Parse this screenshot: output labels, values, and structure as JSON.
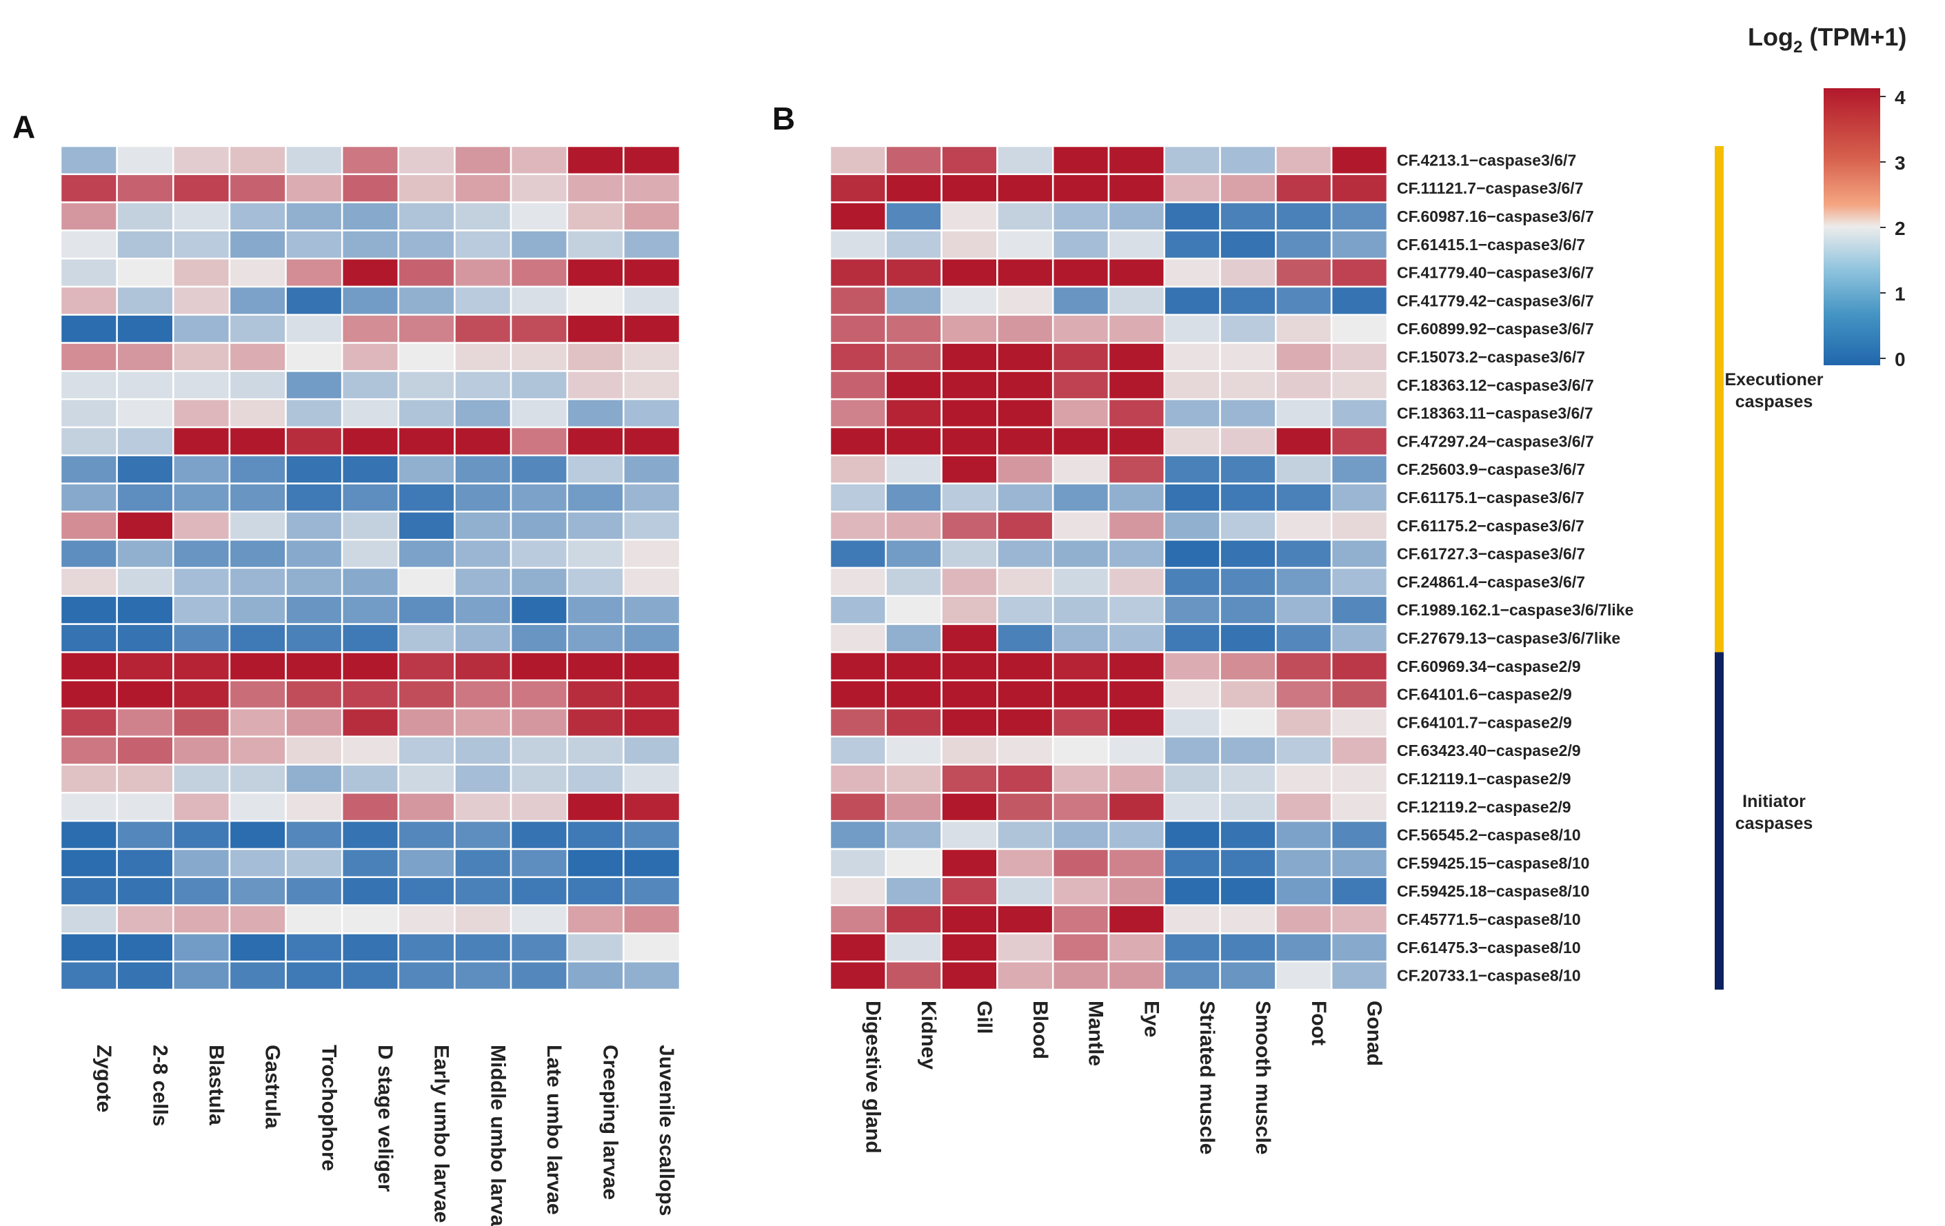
{
  "panel_a_label": "A",
  "panel_b_label": "B",
  "legend": {
    "title_prefix": "Log",
    "title_subscript": "2",
    "title_suffix": " (TPM+1)",
    "ticks": [
      "4",
      "3",
      "2",
      "1",
      "0"
    ],
    "tick_values": [
      4,
      3,
      2,
      1,
      0
    ]
  },
  "groups": [
    {
      "label_line1": "Executioner",
      "label_line2": "caspases",
      "color": "#f5bd00",
      "row_start": 0,
      "row_end": 18
    },
    {
      "label_line1": "Initiator",
      "label_line2": "caspases",
      "color": "#0d2160",
      "row_start": 18,
      "row_end": 30
    }
  ],
  "colors": {
    "low": "#2166ac",
    "mid": "#ececec",
    "high": "#b2182b"
  },
  "chart_data": [
    {
      "type": "heatmap",
      "panel": "A",
      "title": "",
      "scale": "Log2 (TPM+1)",
      "vmin": 0,
      "vmax": 4,
      "columns": [
        "Zygote",
        "2-8 cells",
        "Blastula",
        "Gastrula",
        "Trochophore",
        "D stage veliger",
        "Early umbo larvae",
        "Middle umbo larvae",
        "Late umbo larvae",
        "Creeping larvae",
        "Juvenile scallops"
      ],
      "values": [
        [
          1.2,
          1.9,
          2.3,
          2.4,
          1.7,
          3.1,
          2.3,
          2.8,
          2.5,
          4.0,
          4.0
        ],
        [
          3.6,
          3.3,
          3.6,
          3.3,
          2.6,
          3.3,
          2.4,
          2.7,
          2.3,
          2.6,
          2.6
        ],
        [
          2.8,
          1.6,
          1.8,
          1.3,
          1.1,
          1.0,
          1.4,
          1.6,
          1.9,
          2.4,
          2.7
        ],
        [
          1.9,
          1.4,
          1.5,
          1.0,
          1.3,
          1.1,
          1.2,
          1.5,
          1.1,
          1.6,
          1.2
        ],
        [
          1.7,
          2.0,
          2.4,
          2.1,
          2.9,
          4.0,
          3.3,
          2.8,
          3.1,
          4.0,
          4.0
        ],
        [
          2.5,
          1.4,
          2.3,
          0.9,
          0.2,
          0.8,
          1.1,
          1.5,
          1.8,
          2.0,
          1.8
        ],
        [
          0.1,
          0.1,
          1.2,
          1.4,
          1.8,
          2.9,
          3.0,
          3.5,
          3.5,
          4.0,
          4.0
        ],
        [
          2.9,
          2.8,
          2.4,
          2.6,
          2.0,
          2.5,
          2.0,
          2.2,
          2.2,
          2.4,
          2.2
        ],
        [
          1.8,
          1.8,
          1.8,
          1.7,
          0.8,
          1.4,
          1.6,
          1.5,
          1.4,
          2.3,
          2.2
        ],
        [
          1.7,
          1.9,
          2.5,
          2.2,
          1.4,
          1.8,
          1.4,
          1.1,
          1.8,
          1.0,
          1.3
        ],
        [
          1.6,
          1.5,
          4.0,
          4.0,
          3.8,
          4.0,
          4.0,
          4.0,
          3.1,
          4.0,
          4.0
        ],
        [
          0.7,
          0.2,
          0.9,
          0.6,
          0.2,
          0.2,
          1.1,
          0.7,
          0.5,
          1.5,
          1.0
        ],
        [
          1.0,
          0.6,
          0.8,
          0.7,
          0.3,
          0.6,
          0.3,
          0.7,
          0.9,
          0.8,
          1.2
        ],
        [
          2.9,
          4.0,
          2.5,
          1.7,
          1.2,
          1.6,
          0.2,
          1.1,
          1.0,
          1.2,
          1.5
        ],
        [
          0.6,
          1.1,
          0.7,
          0.7,
          1.0,
          1.7,
          0.9,
          1.2,
          1.5,
          1.7,
          2.1
        ],
        [
          2.2,
          1.7,
          1.3,
          1.2,
          1.1,
          1.0,
          2.0,
          1.2,
          1.1,
          1.5,
          2.1
        ],
        [
          0.1,
          0.1,
          1.3,
          1.1,
          0.7,
          0.8,
          0.6,
          0.9,
          0.1,
          0.9,
          1.0
        ],
        [
          0.2,
          0.2,
          0.5,
          0.3,
          0.4,
          0.3,
          1.4,
          1.2,
          0.7,
          0.9,
          0.8
        ],
        [
          4.0,
          3.9,
          3.9,
          4.0,
          4.0,
          4.0,
          3.7,
          3.8,
          4.0,
          4.0,
          4.0
        ],
        [
          4.0,
          4.0,
          3.9,
          3.2,
          3.5,
          3.6,
          3.5,
          3.1,
          3.1,
          3.8,
          3.9
        ],
        [
          3.6,
          3.0,
          3.4,
          2.6,
          2.8,
          3.8,
          2.8,
          2.7,
          2.8,
          3.8,
          3.9
        ],
        [
          3.1,
          3.3,
          2.8,
          2.6,
          2.2,
          2.1,
          1.5,
          1.4,
          1.6,
          1.6,
          1.4
        ],
        [
          2.4,
          2.4,
          1.6,
          1.6,
          1.1,
          1.4,
          1.7,
          1.3,
          1.6,
          1.5,
          1.8
        ],
        [
          1.9,
          1.9,
          2.5,
          1.9,
          2.1,
          3.3,
          2.8,
          2.3,
          2.3,
          4.0,
          3.9
        ],
        [
          0.1,
          0.5,
          0.3,
          0.1,
          0.5,
          0.2,
          0.5,
          0.6,
          0.2,
          0.3,
          0.5
        ],
        [
          0.1,
          0.2,
          1.0,
          1.3,
          1.4,
          0.4,
          0.9,
          0.4,
          0.6,
          0.1,
          0.1
        ],
        [
          0.2,
          0.2,
          0.5,
          0.7,
          0.5,
          0.2,
          0.3,
          0.4,
          0.3,
          0.3,
          0.5
        ],
        [
          1.7,
          2.5,
          2.6,
          2.6,
          2.0,
          2.0,
          2.1,
          2.2,
          1.9,
          2.7,
          2.9
        ],
        [
          0.1,
          0.1,
          0.8,
          0.1,
          0.3,
          0.2,
          0.4,
          0.4,
          0.5,
          1.6,
          2.0
        ],
        [
          0.3,
          0.2,
          0.7,
          0.4,
          0.3,
          0.3,
          0.5,
          0.6,
          0.5,
          1.0,
          1.1
        ]
      ]
    },
    {
      "type": "heatmap",
      "panel": "B",
      "title": "",
      "scale": "Log2 (TPM+1)",
      "vmin": 0,
      "vmax": 4,
      "columns": [
        "Digestive gland",
        "Kidney",
        "Gill",
        "Blood",
        "Mantle",
        "Eye",
        "Striated muscle",
        "Smooth muscle",
        "Foot",
        "Gonad"
      ],
      "rows": [
        "CF.4213.1−caspase3/6/7",
        "CF.11121.7−caspase3/6/7",
        "CF.60987.16−caspase3/6/7",
        "CF.61415.1−caspase3/6/7",
        "CF.41779.40−caspase3/6/7",
        "CF.41779.42−caspase3/6/7",
        "CF.60899.92−caspase3/6/7",
        "CF.15073.2−caspase3/6/7",
        "CF.18363.12−caspase3/6/7",
        "CF.18363.11−caspase3/6/7",
        "CF.47297.24−caspase3/6/7",
        "CF.25603.9−caspase3/6/7",
        "CF.61175.1−caspase3/6/7",
        "CF.61175.2−caspase3/6/7",
        "CF.61727.3−caspase3/6/7",
        "CF.24861.4−caspase3/6/7",
        "CF.1989.162.1−caspase3/6/7like",
        "CF.27679.13−caspase3/6/7like",
        "CF.60969.34−caspase2/9",
        "CF.64101.6−caspase2/9",
        "CF.64101.7−caspase2/9",
        "CF.63423.40−caspase2/9",
        "CF.12119.1−caspase2/9",
        "CF.12119.2−caspase2/9",
        "CF.56545.2−caspase8/10",
        "CF.59425.15−caspase8/10",
        "CF.59425.18−caspase8/10",
        "CF.45771.5−caspase8/10",
        "CF.61475.3−caspase8/10",
        "CF.20733.1−caspase8/10"
      ],
      "values": [
        [
          2.4,
          3.3,
          3.6,
          1.7,
          4.0,
          4.0,
          1.4,
          1.3,
          2.5,
          4.0
        ],
        [
          3.8,
          4.0,
          4.0,
          4.0,
          4.0,
          4.0,
          2.5,
          2.7,
          3.7,
          3.8
        ],
        [
          4.0,
          0.5,
          2.1,
          1.6,
          1.3,
          1.2,
          0.2,
          0.4,
          0.4,
          0.6
        ],
        [
          1.8,
          1.5,
          2.2,
          1.9,
          1.3,
          1.8,
          0.3,
          0.2,
          0.6,
          0.9
        ],
        [
          3.8,
          3.8,
          4.0,
          4.0,
          4.0,
          4.0,
          2.1,
          2.3,
          3.4,
          3.6
        ],
        [
          3.4,
          1.1,
          1.9,
          2.1,
          0.7,
          1.7,
          0.2,
          0.3,
          0.5,
          0.2
        ],
        [
          3.3,
          3.2,
          2.7,
          2.8,
          2.6,
          2.6,
          1.8,
          1.5,
          2.2,
          2.0
        ],
        [
          3.6,
          3.4,
          4.0,
          4.0,
          3.7,
          4.0,
          2.1,
          2.1,
          2.6,
          2.3
        ],
        [
          3.3,
          4.0,
          4.0,
          4.0,
          3.6,
          4.0,
          2.2,
          2.2,
          2.3,
          2.2
        ],
        [
          3.0,
          3.9,
          4.0,
          4.0,
          2.7,
          3.6,
          1.2,
          1.2,
          1.8,
          1.3
        ],
        [
          4.0,
          4.0,
          4.0,
          4.0,
          4.0,
          4.0,
          2.2,
          2.3,
          4.0,
          3.6
        ],
        [
          2.4,
          1.8,
          4.0,
          2.8,
          2.1,
          3.5,
          0.4,
          0.4,
          1.6,
          0.8
        ],
        [
          1.5,
          0.7,
          1.5,
          1.2,
          0.8,
          1.1,
          0.2,
          0.3,
          0.4,
          1.2
        ],
        [
          2.5,
          2.6,
          3.3,
          3.6,
          2.1,
          2.8,
          1.1,
          1.5,
          2.1,
          2.2
        ],
        [
          0.3,
          0.8,
          1.6,
          1.2,
          1.1,
          1.2,
          0.1,
          0.2,
          0.4,
          1.1
        ],
        [
          2.1,
          1.6,
          2.5,
          2.2,
          1.7,
          2.3,
          0.4,
          0.5,
          0.8,
          1.3
        ],
        [
          1.3,
          2.0,
          2.4,
          1.5,
          1.4,
          1.5,
          0.7,
          0.6,
          1.2,
          0.5
        ],
        [
          2.1,
          1.1,
          4.0,
          0.4,
          1.2,
          1.3,
          0.3,
          0.2,
          0.5,
          1.2
        ],
        [
          4.0,
          4.0,
          4.0,
          4.0,
          3.9,
          4.0,
          2.6,
          2.9,
          3.5,
          3.7
        ],
        [
          4.0,
          4.0,
          4.0,
          4.0,
          4.0,
          4.0,
          2.1,
          2.4,
          3.1,
          3.4
        ],
        [
          3.4,
          3.7,
          4.0,
          4.0,
          3.6,
          4.0,
          1.8,
          2.0,
          2.4,
          2.1
        ],
        [
          1.5,
          1.9,
          2.2,
          2.1,
          2.0,
          1.9,
          1.2,
          1.2,
          1.5,
          2.5
        ],
        [
          2.5,
          2.4,
          3.5,
          3.6,
          2.5,
          2.6,
          1.6,
          1.7,
          2.1,
          2.1
        ],
        [
          3.5,
          2.8,
          4.0,
          3.4,
          3.1,
          3.8,
          1.8,
          1.7,
          2.5,
          2.1
        ],
        [
          0.8,
          1.2,
          1.8,
          1.4,
          1.2,
          1.3,
          0.1,
          0.2,
          0.9,
          0.5
        ],
        [
          1.7,
          2.0,
          4.0,
          2.6,
          3.3,
          3.0,
          0.3,
          0.3,
          1.0,
          1.0
        ],
        [
          2.1,
          1.2,
          3.6,
          1.7,
          2.5,
          2.8,
          0.1,
          0.1,
          0.8,
          0.3
        ],
        [
          3.0,
          3.7,
          4.0,
          4.0,
          3.1,
          4.0,
          2.1,
          2.1,
          2.6,
          2.5
        ],
        [
          4.0,
          1.8,
          4.0,
          2.3,
          3.1,
          2.6,
          0.4,
          0.4,
          0.7,
          1.0
        ],
        [
          4.0,
          3.4,
          4.0,
          2.6,
          2.8,
          2.8,
          0.6,
          0.7,
          1.9,
          1.2
        ]
      ]
    }
  ]
}
